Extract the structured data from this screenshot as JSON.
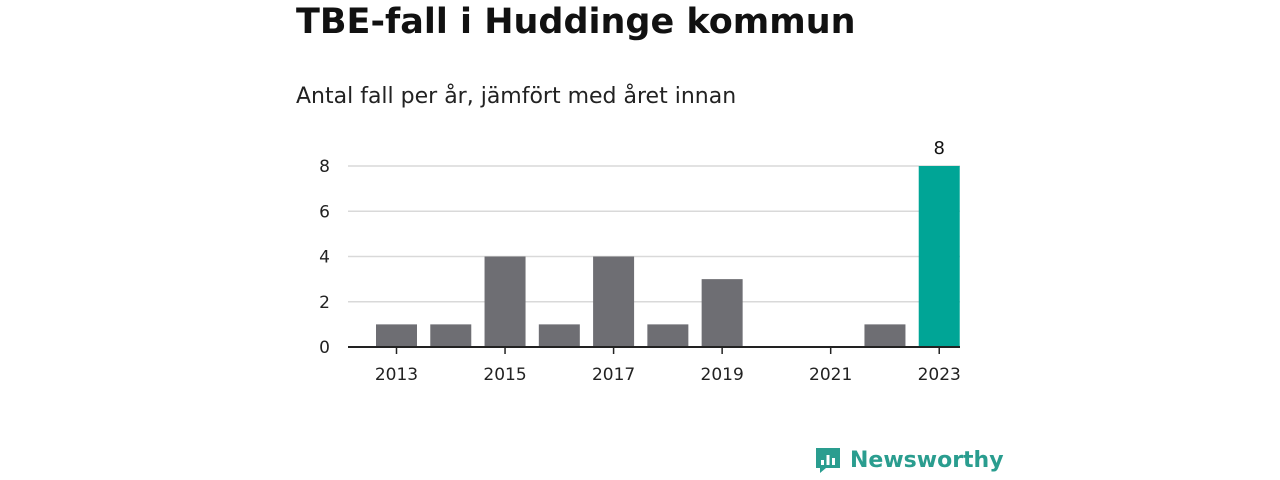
{
  "title": "TBE-fall i Huddinge kommun",
  "subtitle": "Antal fall per år, jämfört med året innan",
  "brand": {
    "name": "Newsworthy",
    "color": "#2a9d8f",
    "icon": "bar-chart-speech-bubble-icon"
  },
  "colors": {
    "bar": "#6e6e73",
    "highlight": "#00a596",
    "grid": "#d9d9d9",
    "axis": "#222222"
  },
  "chart_data": {
    "type": "bar",
    "categories": [
      "2013",
      "2014",
      "2015",
      "2016",
      "2017",
      "2018",
      "2019",
      "2020",
      "2021",
      "2022",
      "2023"
    ],
    "values": [
      1,
      1,
      4,
      1,
      4,
      1,
      3,
      0,
      0,
      1,
      8
    ],
    "highlight_index": 10,
    "data_labels": [
      {
        "index": 10,
        "text": "8"
      }
    ],
    "x_tick_labels": [
      "2013",
      "2015",
      "2017",
      "2019",
      "2021",
      "2023"
    ],
    "y_ticks": [
      0,
      2,
      4,
      6,
      8
    ],
    "ylim": [
      0,
      8
    ],
    "grid": true,
    "title": "TBE-fall i Huddinge kommun",
    "subtitle": "Antal fall per år, jämfört med året innan",
    "xlabel": "",
    "ylabel": ""
  }
}
